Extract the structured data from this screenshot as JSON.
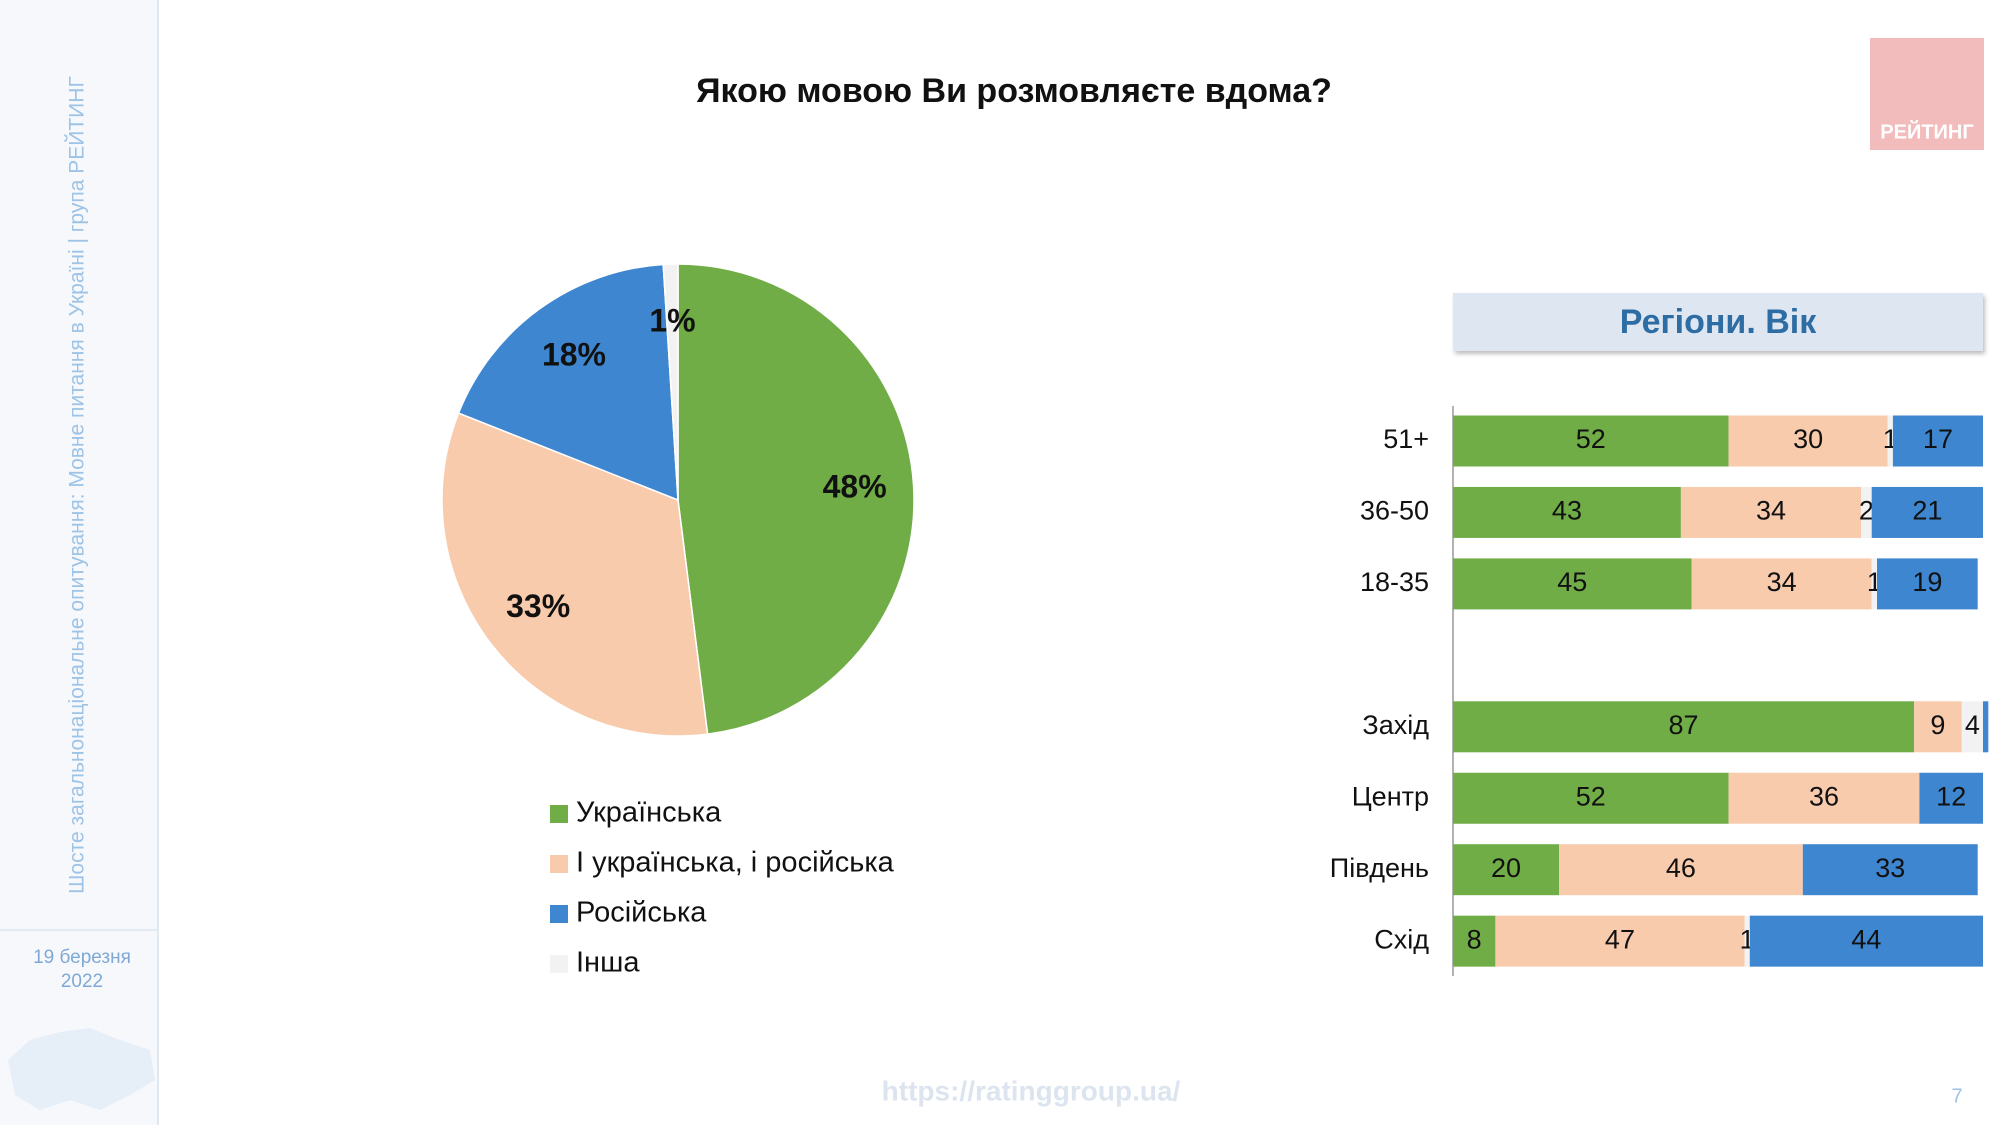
{
  "slide": {
    "sidebar_text": "Шосте загальнонаціональне опитування: Мовне питання в Україні | група РЕЙТИНГ",
    "date_line1": "19 березня",
    "date_line2": "2022",
    "logo": "РЕЙТИНГ",
    "url": "https://ratinggroup.ua/",
    "page": "7"
  },
  "chart_data": [
    {
      "type": "pie",
      "title": "Якою мовою Ви розмовляєте вдома?",
      "categories": [
        "Українська",
        "І українська, і російська",
        "Російська",
        "Інша"
      ],
      "values": [
        48,
        33,
        18,
        1
      ],
      "value_labels": [
        "48%",
        "33%",
        "18%",
        "1%"
      ],
      "colors": [
        "#70ad47",
        "#f8cbad",
        "#3e86cf",
        "#f2f2f2"
      ],
      "legend": "bottom"
    },
    {
      "type": "stacked-barh",
      "title": "Регіони. Вік",
      "categories": [
        "51+",
        "36-50",
        "18-35",
        null,
        "Захід",
        "Центр",
        "Південь",
        "Схід"
      ],
      "series": [
        {
          "color": "#70ad47",
          "values": [
            52,
            43,
            45,
            null,
            87,
            52,
            20,
            8
          ]
        },
        {
          "color": "#f8cbad",
          "values": [
            30,
            34,
            34,
            null,
            9,
            36,
            46,
            47
          ]
        },
        {
          "color": "#f2f2f2",
          "values": [
            1,
            2,
            1,
            null,
            4,
            0,
            0,
            1
          ],
          "value_labels": [
            "1",
            "2",
            "1",
            null,
            "4",
            null,
            null,
            "1"
          ]
        },
        {
          "color": "#3e86cf",
          "values": [
            17,
            21,
            19,
            null,
            1,
            12,
            33,
            44
          ],
          "value_labels": [
            "17",
            "21",
            "19",
            null,
            null,
            "12",
            "33",
            "44"
          ]
        }
      ]
    }
  ]
}
